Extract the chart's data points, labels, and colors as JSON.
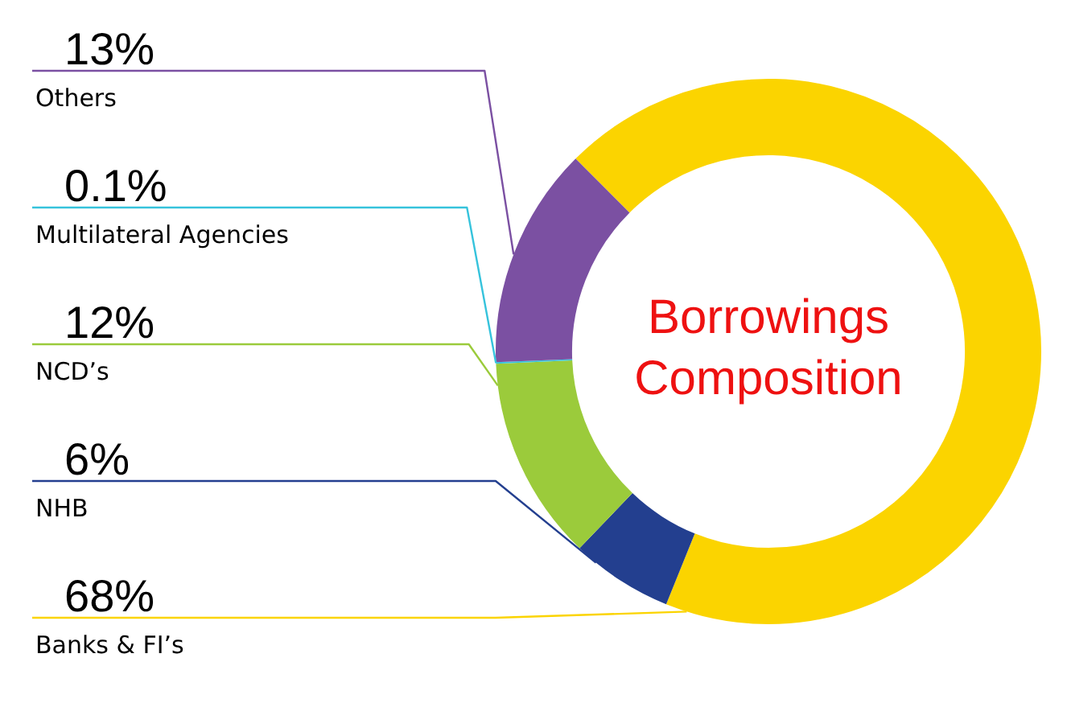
{
  "chart_data": {
    "type": "donut",
    "title": "Borrowings Composition",
    "categories": [
      "Others",
      "Multilateral Agencies",
      "NCD’s",
      "NHB",
      "Banks & FI’s"
    ],
    "values": [
      13,
      0.1,
      12,
      6,
      68
    ],
    "value_labels": [
      "13%",
      "0.1%",
      "12%",
      "6%",
      "68%"
    ],
    "colors": [
      "#7b50a2",
      "#36c3dc",
      "#9bcb3b",
      "#233f8f",
      "#fbd400"
    ],
    "legend": false
  }
}
